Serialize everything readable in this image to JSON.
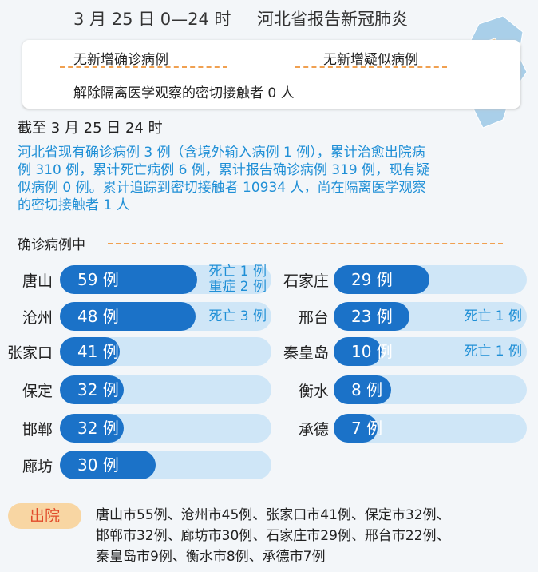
{
  "header": {
    "date": "3 月 25 日 0—24 时",
    "title": "河北省报告新冠肺炎"
  },
  "summary": [
    "无新增确诊病例",
    "无新增疑似病例",
    "解除隔离医学观察的密切接触者 0 人"
  ],
  "as_of": "截至 3 月 25 日 24 时",
  "paragraph": [
    "河北省现有确诊病例 3 例（含境外输入病例 1 例），累计治愈出院病",
    "例 310 例，累计死亡病例 6 例，累计报告确诊病例 319 例，现有疑",
    "似病例 0 例。累计追踪到密切接触者 10934 人，尚在隔离医学观察",
    "的密切接触者 1 人"
  ],
  "section": "确诊病例中",
  "cities_left": [
    {
      "name": "唐山",
      "count": "59 例",
      "notes": [
        "死亡 1 例",
        "重症 2 例"
      ]
    },
    {
      "name": "沧州",
      "count": "48 例",
      "notes": [
        "死亡 3 例"
      ]
    },
    {
      "name": "张家口",
      "count": "41 例",
      "notes": []
    },
    {
      "name": "保定",
      "count": "32 例",
      "notes": []
    },
    {
      "name": "邯郸",
      "count": "32 例",
      "notes": []
    },
    {
      "name": "廊坊",
      "count": "30 例",
      "notes": []
    }
  ],
  "cities_right": [
    {
      "name": "石家庄",
      "count": "29 例",
      "notes": []
    },
    {
      "name": "邢台",
      "count": "23 例",
      "notes": [
        "死亡 1 例"
      ]
    },
    {
      "name": "秦皇岛",
      "count": "10 例",
      "notes": [
        "死亡 1 例"
      ]
    },
    {
      "name": "衡水",
      "count": "8 例",
      "notes": []
    },
    {
      "name": "承德",
      "count": "7 例",
      "notes": []
    }
  ],
  "discharge": {
    "label": "出院",
    "lines": [
      "唐山市55例、沧州市45例、张家口市41例、保定市32例、",
      "邯郸市32例、廊坊市30例、石家庄市29例、邢台市22例、",
      "秦皇岛市9例、衡水市8例、承德市7例"
    ]
  }
}
